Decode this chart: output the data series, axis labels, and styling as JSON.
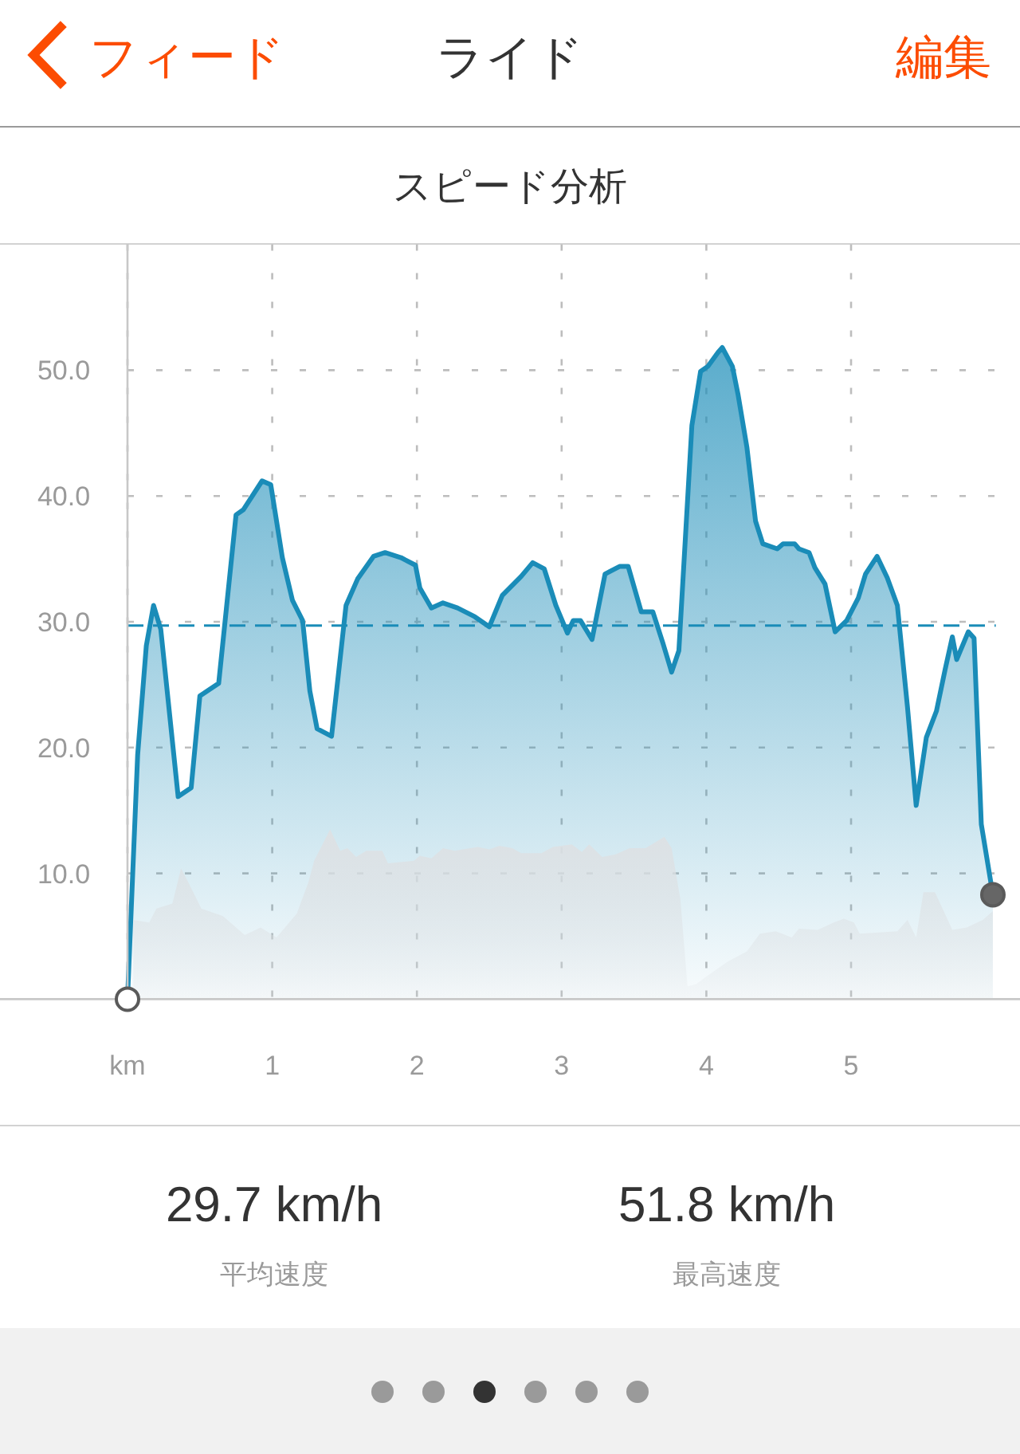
{
  "chart_data": {
    "type": "area",
    "title": "ライド",
    "subtitle": "スピード分析",
    "xlim": [
      0,
      6.0
    ],
    "xticks": [
      {
        "value": 0,
        "label": "km"
      },
      1,
      2,
      3,
      4,
      5
    ],
    "ylim": [
      0,
      60
    ],
    "yticks": [
      {
        "value": 10,
        "label": "10.0"
      },
      {
        "value": 20,
        "label": "20.0"
      },
      {
        "value": 30,
        "label": "30.0"
      },
      {
        "value": 40,
        "label": "40.0"
      },
      {
        "value": 50,
        "label": "50.0"
      }
    ],
    "grid": true,
    "series": [
      {
        "color": "#dde1e4",
        "x": [
          0.04,
          0.15,
          0.2,
          0.31,
          0.37,
          0.42,
          0.51,
          0.66,
          0.81,
          0.92,
          1.03,
          1.17,
          1.25,
          1.29,
          1.4,
          1.47,
          1.52,
          1.58,
          1.65,
          1.76,
          1.8,
          1.98,
          2.02,
          2.1,
          2.18,
          2.26,
          2.42,
          2.5,
          2.57,
          2.66,
          2.72,
          2.86,
          2.94,
          3.07,
          3.14,
          3.19,
          3.28,
          3.37,
          3.47,
          3.58,
          3.71,
          3.76,
          3.82,
          3.87,
          3.93,
          4.0,
          4.15,
          4.28,
          4.37,
          4.48,
          4.59,
          4.64,
          4.77,
          4.88,
          4.95,
          5.02,
          5.06,
          5.32,
          5.39,
          5.45,
          5.5,
          5.58,
          5.7,
          5.8,
          5.91,
          5.98
        ],
        "values": [
          6.3,
          6.1,
          7.2,
          7.6,
          10.4,
          9.3,
          7.2,
          6.6,
          5.1,
          5.7,
          4.9,
          6.8,
          9.3,
          11.0,
          13.5,
          11.8,
          12.0,
          11.3,
          11.8,
          11.8,
          10.8,
          11.0,
          11.4,
          11.2,
          12.0,
          11.8,
          12.1,
          11.9,
          12.2,
          12.0,
          11.6,
          11.6,
          12.1,
          12.3,
          11.7,
          12.3,
          11.3,
          11.5,
          12.0,
          12.0,
          12.9,
          12.0,
          8.0,
          1.0,
          1.2,
          1.8,
          3.0,
          3.8,
          5.2,
          5.4,
          4.9,
          5.6,
          5.5,
          6.1,
          6.4,
          6.1,
          5.2,
          5.4,
          6.3,
          4.9,
          8.5,
          8.5,
          5.5,
          5.7,
          6.3,
          7.0
        ]
      },
      {
        "color": "#1a8cb8",
        "line_style": "solid",
        "x": [
          0,
          0.07,
          0.13,
          0.18,
          0.23,
          0.35,
          0.44,
          0.5,
          0.63,
          0.75,
          0.8,
          0.93,
          0.99,
          1.07,
          1.14,
          1.21,
          1.26,
          1.31,
          1.41,
          1.51,
          1.59,
          1.7,
          1.78,
          1.89,
          1.99,
          2.02,
          2.1,
          2.18,
          2.28,
          2.4,
          2.5,
          2.59,
          2.72,
          2.8,
          2.88,
          2.96,
          3.04,
          3.08,
          3.13,
          3.21,
          3.3,
          3.4,
          3.46,
          3.55,
          3.63,
          3.7,
          3.76,
          3.81,
          3.9,
          3.96,
          4.01,
          4.08,
          4.11,
          4.18,
          4.22,
          4.28,
          4.34,
          4.39,
          4.49,
          4.53,
          4.61,
          4.64,
          4.71,
          4.75,
          4.82,
          4.89,
          4.97,
          5.05,
          5.1,
          5.18,
          5.25,
          5.32,
          5.39,
          5.45,
          5.52,
          5.59,
          5.65,
          5.7,
          5.73,
          5.81,
          5.85,
          5.9,
          5.98
        ],
        "values": [
          0,
          19.4,
          28.1,
          31.3,
          29.4,
          16.1,
          16.8,
          24.1,
          25.1,
          38.5,
          38.9,
          41.2,
          40.9,
          35.1,
          31.7,
          30.1,
          24.5,
          21.5,
          20.9,
          31.3,
          33.4,
          35.2,
          35.5,
          35.1,
          34.5,
          32.7,
          31.1,
          31.5,
          31.1,
          30.4,
          29.6,
          32.1,
          33.6,
          34.7,
          34.2,
          31.3,
          29.1,
          30.1,
          30.1,
          28.6,
          33.8,
          34.4,
          34.4,
          30.8,
          30.8,
          28.3,
          26.0,
          27.7,
          45.6,
          49.9,
          50.3,
          51.4,
          51.8,
          50.3,
          48.0,
          43.9,
          38.0,
          36.2,
          35.8,
          36.2,
          36.2,
          35.8,
          35.5,
          34.3,
          33.0,
          29.2,
          30.1,
          31.9,
          33.8,
          35.2,
          33.5,
          31.3,
          23.2,
          15.4,
          20.8,
          22.9,
          26.2,
          28.8,
          27.0,
          29.2,
          28.7,
          13.9,
          8.3
        ]
      },
      {
        "type": "scatter",
        "marker": "circle",
        "x": [
          0,
          5.98
        ],
        "values": [
          0,
          8.3
        ],
        "colors": [
          "#ffffff",
          "#666666"
        ]
      }
    ],
    "ref_lines": [
      {
        "axis": "y",
        "value": 29.7,
        "color": "#1a8cb8",
        "line_style": "dashed"
      }
    ],
    "annotations": [
      "フィード",
      "編集",
      "29.7 km/h",
      "平均速度",
      "51.8 km/h",
      "最高速度"
    ]
  }
}
